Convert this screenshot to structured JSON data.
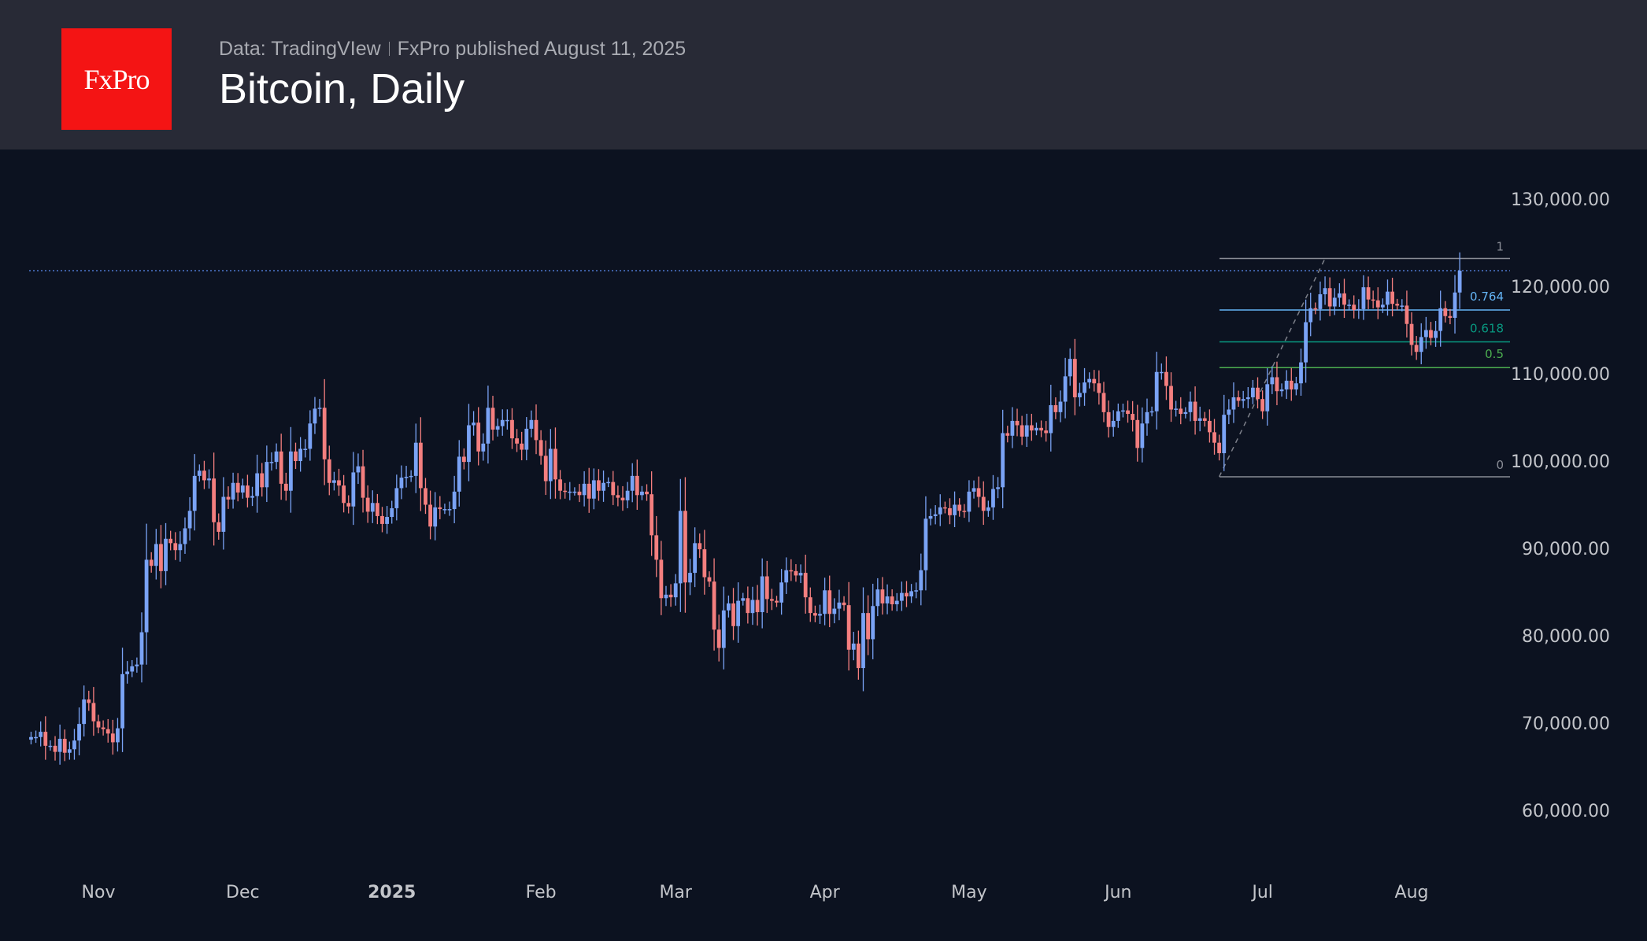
{
  "header": {
    "logo_text": "FxPro",
    "source": "Data: TradingVIew",
    "published": "FxPro published August 11, 2025",
    "title": "Bitcoin, Daily"
  },
  "colors": {
    "up": "#7aa3f5",
    "down": "#f47f7f",
    "fib_1": "#8a8d96",
    "fib_0764": "#64b5f6",
    "fib_0618": "#089981",
    "fib_05": "#4caf50",
    "fib_0": "#8a8d96",
    "price_line": "#5b8def"
  },
  "chart_data": {
    "type": "candlestick",
    "title": "Bitcoin, Daily",
    "ylim": [
      53000,
      135000
    ],
    "y_ticks": [
      "60,000.00",
      "70,000.00",
      "80,000.00",
      "90,000.00",
      "100,000.00",
      "110,000.00",
      "120,000.00",
      "130,000.00"
    ],
    "y_tick_values": [
      60000,
      70000,
      80000,
      90000,
      100000,
      110000,
      120000,
      130000
    ],
    "x_ticks": [
      {
        "label": "Nov",
        "date": "2024-11-01",
        "bold": false
      },
      {
        "label": "Dec",
        "date": "2024-12-01",
        "bold": false
      },
      {
        "label": "2025",
        "date": "2025-01-01",
        "bold": true
      },
      {
        "label": "Feb",
        "date": "2025-02-01",
        "bold": false
      },
      {
        "label": "Mar",
        "date": "2025-03-01",
        "bold": false
      },
      {
        "label": "Apr",
        "date": "2025-04-01",
        "bold": false
      },
      {
        "label": "May",
        "date": "2025-05-01",
        "bold": false
      },
      {
        "label": "Jun",
        "date": "2025-06-01",
        "bold": false
      },
      {
        "label": "Jul",
        "date": "2025-07-01",
        "bold": false
      },
      {
        "label": "Aug",
        "date": "2025-08-01",
        "bold": false
      }
    ],
    "grid": false,
    "current_price": 121800,
    "fibonacci": {
      "from_date": "2025-06-22",
      "to_date": "2025-08-11",
      "low": 98200,
      "high": 123200,
      "levels": [
        {
          "label": "1",
          "ratio": 1
        },
        {
          "label": "0.764",
          "ratio": 0.764
        },
        {
          "label": "0.618",
          "ratio": 0.618
        },
        {
          "label": "0.5",
          "ratio": 0.5
        },
        {
          "label": "0",
          "ratio": 0
        }
      ],
      "trend_line": {
        "from_date": "2025-06-22",
        "from_price": 98200,
        "to_date": "2025-07-14",
        "to_price": 123200
      }
    },
    "closes_by_month": [
      {
        "month": "2024-10",
        "first_day": 18,
        "closes": [
          68400,
          68400,
          69000,
          67400,
          67400,
          66700,
          68200,
          66600,
          67000,
          68000,
          69900,
          72700,
          72300,
          70200
        ]
      },
      {
        "month": "2024-11",
        "first_day": 1,
        "closes": [
          69500,
          69300,
          68800,
          67800,
          69400,
          75600,
          75900,
          76500,
          76700,
          80400,
          88700,
          88000,
          90500,
          87400,
          91100,
          90600,
          89800,
          90500,
          92300,
          94300,
          98300,
          98900,
          97800,
          98000,
          93000,
          91900,
          95900,
          95600,
          97500,
          96400
        ]
      },
      {
        "month": "2024-12",
        "first_day": 1,
        "closes": [
          97200,
          95800,
          96000,
          98600,
          97000,
          99900,
          99900,
          101100,
          97400,
          96600,
          101100,
          100000,
          101400,
          101400,
          104300,
          106000,
          106100,
          100200,
          97500,
          97800,
          97200,
          95200,
          94800,
          98700,
          99400,
          95800,
          94200,
          95200,
          93700,
          92800,
          93600
        ]
      },
      {
        "month": "2025-01",
        "first_day": 1,
        "closes": [
          94600,
          96900,
          98100,
          98200,
          98300,
          102100,
          96900,
          95000,
          92500,
          94700,
          94500,
          94500,
          94500,
          96500,
          100500,
          99900,
          104100,
          104400,
          101100,
          102000,
          106100,
          103600,
          104000,
          104700,
          104700,
          102600,
          102000,
          101300,
          103700,
          104700,
          102400
        ]
      },
      {
        "month": "2025-02",
        "first_day": 1,
        "closes": [
          100600,
          97700,
          101400,
          97900,
          96600,
          96500,
          96500,
          96500,
          96100,
          97400,
          95700,
          97800,
          96600,
          97500,
          97600,
          96100,
          95800,
          95500,
          96600,
          98300,
          96100,
          96500,
          96200,
          91500,
          88700,
          84300,
          84700,
          84400
        ]
      },
      {
        "month": "2025-03",
        "first_day": 1,
        "closes": [
          86000,
          94300,
          86100,
          87200,
          90600,
          89900,
          86700,
          86200,
          80700,
          78600,
          82900,
          83700,
          81100,
          84000,
          84300,
          82600,
          84100,
          82700,
          86800,
          84200,
          84000,
          83800,
          86100,
          87500,
          87400,
          86900,
          87200,
          84400,
          82600,
          82300,
          82500
        ]
      },
      {
        "month": "2025-04",
        "first_day": 1,
        "closes": [
          85200,
          82500,
          83100,
          83800,
          83500,
          78400,
          79100,
          76300,
          82600,
          79600,
          83400,
          85300,
          83700,
          84500,
          83600,
          84000,
          84900,
          84500,
          85100,
          85200,
          87500,
          93400,
          93700,
          93900,
          94700,
          94600,
          93800,
          95000,
          94300,
          94200
        ]
      },
      {
        "month": "2025-05",
        "first_day": 1,
        "closes": [
          96500,
          96900,
          95900,
          94300,
          94700,
          96800,
          97000,
          103200,
          102900,
          104600,
          104100,
          102800,
          104100,
          103500,
          103800,
          103500,
          103200,
          106400,
          105600,
          106800,
          109700,
          111700,
          107300,
          107800,
          109000,
          109400,
          108900,
          107800,
          105600,
          103900,
          104600
        ]
      },
      {
        "month": "2025-06",
        "first_day": 1,
        "closes": [
          105700,
          105800,
          105400,
          104700,
          101500,
          104300,
          105600,
          105700,
          110200,
          110200,
          108600,
          105900,
          106000,
          105400,
          105600,
          106800,
          104600,
          104900,
          104600,
          103300,
          102100,
          100900,
          105300,
          105900,
          107300,
          106900,
          107100,
          107300,
          108400,
          107100
        ]
      },
      {
        "month": "2025-07",
        "first_day": 1,
        "closes": [
          105700,
          108800,
          109600,
          108000,
          108200,
          109200,
          108200,
          108900,
          111300,
          115900,
          117500,
          117400,
          119100,
          119800,
          117700,
          118700,
          119200,
          117900,
          117900,
          117300,
          117400,
          119900,
          118500,
          118400,
          117600,
          117900,
          119400,
          118000,
          117800,
          117800,
          115700
        ]
      },
      {
        "month": "2025-08",
        "first_day": 1,
        "closes": [
          113300,
          112500,
          114200,
          115000,
          114100,
          114900,
          117500,
          116600,
          116400,
          119300,
          121800
        ]
      }
    ]
  }
}
